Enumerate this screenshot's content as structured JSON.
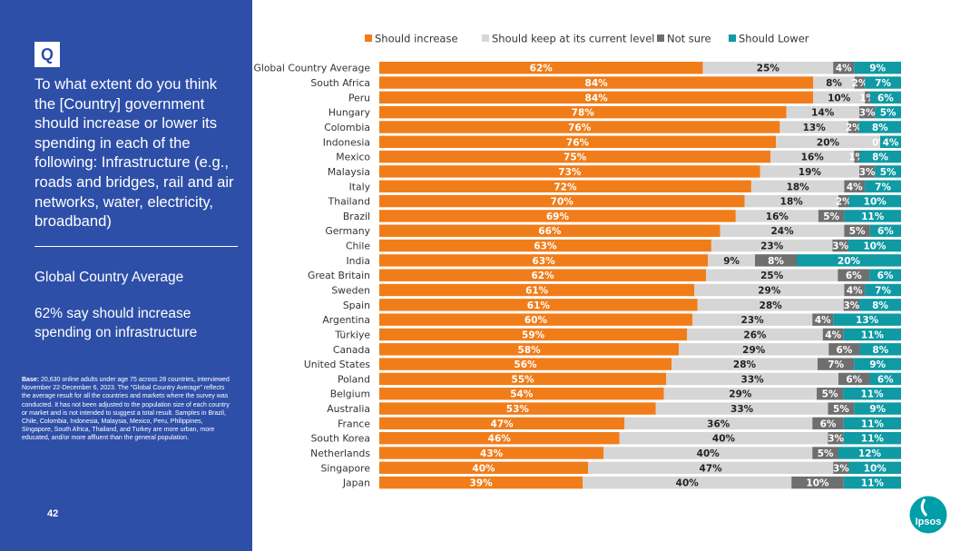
{
  "sidebar": {
    "badge": "Q",
    "question": "To what extent do you think the [Country] government should increase or lower its spending in each of the following: Infrastructure (e.g., roads and bridges, rail and air networks, water, electricity, broadband)",
    "summary_title": "Global Country Average",
    "summary_text": "62% say should increase spending on infrastructure",
    "base_label": "Base:",
    "base_text": "20,630 online adults under age 75 across 28 countries, interviewed November 22-December 6, 2023. The \"Global Country Average\" reflects the average result for all the countries and markets where the survey was conducted. It has not been adjusted to the population size of each country or market and is not intended to suggest a total result. Samples in Brazil, Chile, Colombia, Indonesia, Malaysia, Mexico, Peru, Philippines, Singapore, South Africa, Thailand, and Turkey are more urban, more educated, and/or more affluent than the general population.",
    "page_number": "42"
  },
  "logo": {
    "text": "Ipsos",
    "color": "#009ea8"
  },
  "chart_data": {
    "type": "bar",
    "orientation": "horizontal",
    "stacked": true,
    "percent_stacked": true,
    "legend_position": "top",
    "categories": [
      "Global Country Average",
      "South Africa",
      "Peru",
      "Hungary",
      "Colombia",
      "Indonesia",
      "Mexico",
      "Malaysia",
      "Italy",
      "Thailand",
      "Brazil",
      "Germany",
      "Chile",
      "India",
      "Great Britain",
      "Sweden",
      "Spain",
      "Argentina",
      "Türkiye",
      "Canada",
      "United States",
      "Poland",
      "Belgium",
      "Australia",
      "France",
      "South Korea",
      "Netherlands",
      "Singapore",
      "Japan"
    ],
    "series": [
      {
        "name": "Should increase",
        "color": "#f07d1a",
        "values": [
          62,
          84,
          84,
          78,
          76,
          76,
          75,
          73,
          72,
          70,
          69,
          66,
          63,
          63,
          62,
          61,
          61,
          60,
          59,
          58,
          56,
          55,
          54,
          53,
          47,
          46,
          43,
          40,
          39
        ],
        "labels": [
          "62%",
          "84%",
          "84%",
          "78%",
          "76%",
          "76%",
          "75%",
          "73%",
          "72%",
          "70%",
          "69%",
          "66%",
          "63%",
          "63%",
          "62%",
          "61%",
          "61%",
          "60%",
          "59%",
          "58%",
          "56%",
          "55%",
          "54%",
          "53%",
          "47%",
          "46%",
          "43%",
          "40%",
          "39%"
        ]
      },
      {
        "name": "Should keep at its current level",
        "color": "#d6d6d6",
        "values": [
          25,
          8,
          10,
          14,
          13,
          20,
          16,
          19,
          18,
          18,
          16,
          24,
          23,
          9,
          25,
          29,
          28,
          23,
          26,
          29,
          28,
          33,
          29,
          33,
          36,
          40,
          40,
          47,
          40
        ],
        "labels": [
          "25%",
          "8%",
          "10%",
          "14%",
          "13%",
          "20%",
          "16%",
          "19%",
          "18%",
          "18%",
          "16%",
          "24%",
          "23%",
          "9%",
          "25%",
          "29%",
          "28%",
          "23%",
          "26%",
          "29%",
          "28%",
          "33%",
          "29%",
          "33%",
          "36%",
          "40%",
          "40%",
          "47%",
          "40%"
        ]
      },
      {
        "name": "Not sure",
        "color": "#6f6f6f",
        "values": [
          4,
          2,
          1,
          3,
          2,
          0,
          1,
          3,
          4,
          2,
          5,
          5,
          3,
          8,
          6,
          4,
          3,
          4,
          4,
          6,
          7,
          6,
          5,
          5,
          6,
          3,
          5,
          3,
          10
        ],
        "labels": [
          "4%",
          "2%",
          "1%",
          "3%",
          "2%",
          "0%",
          "1%",
          "3%",
          "4%",
          "2%",
          "5%",
          "5%",
          "3%",
          "8%",
          "6%",
          "4%",
          "3%",
          "4%",
          "4%",
          "6%",
          "7%",
          "6%",
          "5%",
          "5%",
          "6%",
          "3%",
          "5%",
          "3%",
          "10%"
        ]
      },
      {
        "name": "Should Lower",
        "color": "#0f9aa4",
        "values": [
          9,
          7,
          6,
          5,
          8,
          4,
          8,
          5,
          7,
          10,
          11,
          6,
          10,
          20,
          6,
          7,
          8,
          13,
          11,
          8,
          9,
          6,
          11,
          9,
          11,
          11,
          12,
          10,
          11
        ],
        "labels": [
          "9%",
          "7%",
          "6%",
          "5%",
          "8%",
          "4%",
          "8%",
          "5%",
          "7%",
          "10%",
          "11%",
          "6%",
          "10%",
          "20%",
          "6%",
          "7%",
          "8%",
          "13%",
          "11%",
          "8%",
          "9%",
          "6%",
          "11%",
          "9%",
          "11%",
          "11%",
          "12%",
          "10%",
          "11%"
        ]
      }
    ],
    "xlim": [
      0,
      100
    ]
  }
}
